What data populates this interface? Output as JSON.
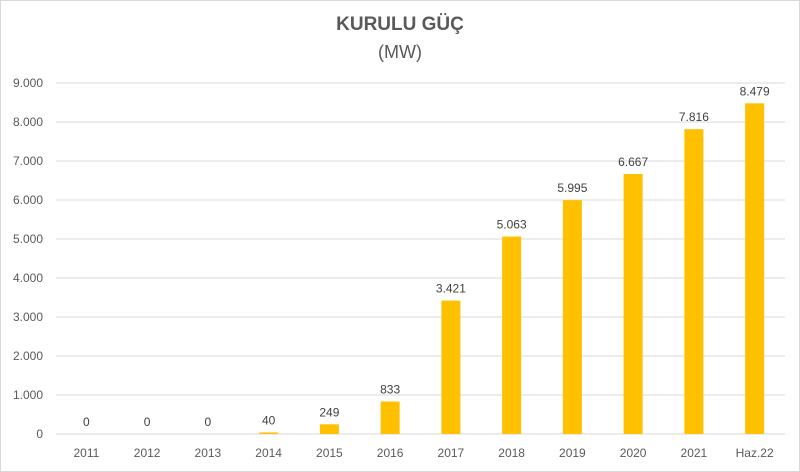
{
  "chart_data": {
    "type": "bar",
    "title": "KURULU GÜÇ",
    "subtitle": "(MW)",
    "categories": [
      "2011",
      "2012",
      "2013",
      "2014",
      "2015",
      "2016",
      "2017",
      "2018",
      "2019",
      "2020",
      "2021",
      "Haz.22"
    ],
    "values": [
      0,
      0,
      0,
      40,
      249,
      833,
      3421,
      5063,
      5995,
      6667,
      7816,
      8479
    ],
    "value_labels": [
      "0",
      "0",
      "0",
      "40",
      "249",
      "833",
      "3.421",
      "5.063",
      "5.995",
      "6.667",
      "7.816",
      "8.479"
    ],
    "ylim": [
      0,
      9000
    ],
    "yticks": [
      0,
      1000,
      2000,
      3000,
      4000,
      5000,
      6000,
      7000,
      8000,
      9000
    ],
    "ytick_labels": [
      "0",
      "1.000",
      "2.000",
      "3.000",
      "4.000",
      "5.000",
      "6.000",
      "7.000",
      "8.000",
      "9.000"
    ],
    "grid": true,
    "bar_color": "#FFC000",
    "grid_color": "#D9D9D9"
  }
}
